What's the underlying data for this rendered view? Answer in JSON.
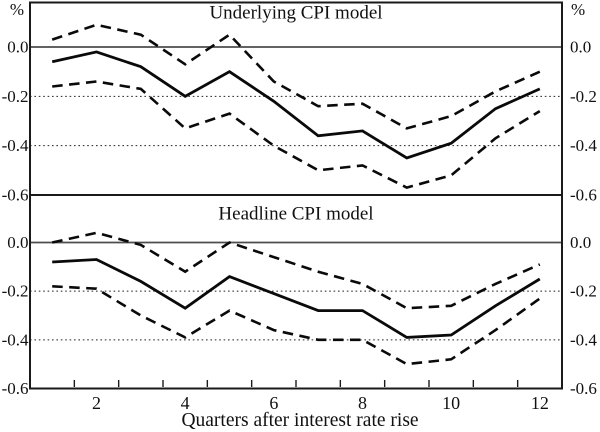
{
  "x_axis": {
    "title": "Quarters after interest rate rise",
    "ticks": [
      {
        "label": "2",
        "value": 2
      },
      {
        "label": "4",
        "value": 4
      },
      {
        "label": "6",
        "value": 6
      },
      {
        "label": "8",
        "value": 8
      },
      {
        "label": "10",
        "value": 10
      },
      {
        "label": "12",
        "value": 12
      }
    ],
    "range": [
      0.5,
      12.5
    ]
  },
  "y_axis": {
    "unit": "%",
    "ticks": [
      {
        "label": "0.0",
        "value": 0.0
      },
      {
        "label": "-0.2",
        "value": -0.2
      },
      {
        "label": "-0.4",
        "value": -0.4
      },
      {
        "label": "-0.6",
        "value": -0.6
      }
    ],
    "range": [
      -0.6,
      0.18
    ],
    "dotted_gridlines": [
      -0.2,
      -0.4
    ]
  },
  "chart_data": [
    {
      "type": "line",
      "title": "Underlying CPI model",
      "xlabel": "Quarters after interest rate rise",
      "ylabel": "%",
      "x": [
        1,
        2,
        3,
        4,
        5,
        6,
        7,
        8,
        9,
        10,
        11,
        12
      ],
      "ylim": [
        -0.6,
        0.18
      ],
      "grid": "horizontal dotted at -0.2 and -0.4; solid line at 0.0",
      "legend_position": "none",
      "series": [
        {
          "name": "upper confidence band",
          "style": "dashed",
          "values": [
            0.03,
            0.09,
            0.05,
            -0.07,
            0.05,
            -0.14,
            -0.24,
            -0.23,
            -0.33,
            -0.28,
            -0.18,
            -0.1
          ]
        },
        {
          "name": "central estimate",
          "style": "solid",
          "values": [
            -0.06,
            -0.02,
            -0.08,
            -0.2,
            -0.1,
            -0.22,
            -0.36,
            -0.34,
            -0.45,
            -0.39,
            -0.25,
            -0.17
          ]
        },
        {
          "name": "lower confidence band",
          "style": "dashed",
          "values": [
            -0.16,
            -0.14,
            -0.17,
            -0.33,
            -0.27,
            -0.4,
            -0.5,
            -0.48,
            -0.57,
            -0.52,
            -0.37,
            -0.26
          ]
        }
      ]
    },
    {
      "type": "line",
      "title": "Headline CPI model",
      "xlabel": "Quarters after interest rate rise",
      "ylabel": "%",
      "x": [
        1,
        2,
        3,
        4,
        5,
        6,
        7,
        8,
        9,
        10,
        11,
        12
      ],
      "ylim": [
        -0.6,
        0.18
      ],
      "grid": "horizontal dotted at -0.2 and -0.4; solid line at 0.0",
      "legend_position": "none",
      "series": [
        {
          "name": "upper confidence band",
          "style": "dashed",
          "values": [
            0.0,
            0.04,
            -0.01,
            -0.12,
            0.0,
            -0.06,
            -0.12,
            -0.17,
            -0.27,
            -0.26,
            -0.17,
            -0.09
          ]
        },
        {
          "name": "central estimate",
          "style": "solid",
          "values": [
            -0.08,
            -0.07,
            -0.16,
            -0.27,
            -0.14,
            -0.21,
            -0.28,
            -0.28,
            -0.39,
            -0.38,
            -0.26,
            -0.15
          ]
        },
        {
          "name": "lower confidence band",
          "style": "dashed",
          "values": [
            -0.18,
            -0.19,
            -0.3,
            -0.39,
            -0.28,
            -0.36,
            -0.4,
            -0.4,
            -0.5,
            -0.48,
            -0.36,
            -0.23
          ]
        }
      ]
    }
  ],
  "colors": {
    "series_line": "#0a0a0a",
    "frame": "#1a1a1a",
    "zero_line": "#4d4d4d",
    "dotted_gridline": "#222222",
    "background": "#ffffff"
  }
}
